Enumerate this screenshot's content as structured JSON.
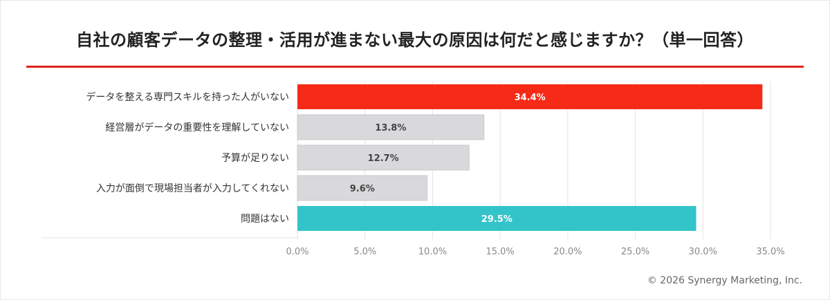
{
  "title": "自社の顧客データの整理・活用が進まない最大の原因は何だと感じますか？（単一回答）",
  "copyright": "© 2026 Synergy Marketing, Inc.",
  "chart_data": {
    "type": "bar",
    "orientation": "horizontal",
    "title": "自社の顧客データの整理・活用が進まない最大の原因は何だと感じますか？（単一回答）",
    "categories": [
      "データを整える専門スキルを持った人がいない",
      "経営層がデータの重要性を理解していない",
      "予算が足りない",
      "入力が面倒で現場担当者が入力してくれない",
      "問題はない"
    ],
    "values": [
      34.4,
      13.8,
      12.7,
      9.6,
      29.5
    ],
    "value_labels": [
      "34.4%",
      "13.8%",
      "12.7%",
      "9.6%",
      "29.5%"
    ],
    "bar_colors": [
      "#f52a17",
      "#d9d9dc",
      "#d9d9dc",
      "#d9d9dc",
      "#33c4c9"
    ],
    "label_colors": [
      "#ffffff",
      "#444444",
      "#444444",
      "#444444",
      "#ffffff"
    ],
    "xlim": [
      0,
      35
    ],
    "xticks": [
      0,
      5,
      10,
      15,
      20,
      25,
      30,
      35
    ],
    "xtick_labels": [
      "0.0%",
      "5.0%",
      "10.0%",
      "15.0%",
      "20.0%",
      "25.0%",
      "30.0%",
      "35.0%"
    ],
    "grid": true,
    "xlabel": "",
    "ylabel": ""
  }
}
